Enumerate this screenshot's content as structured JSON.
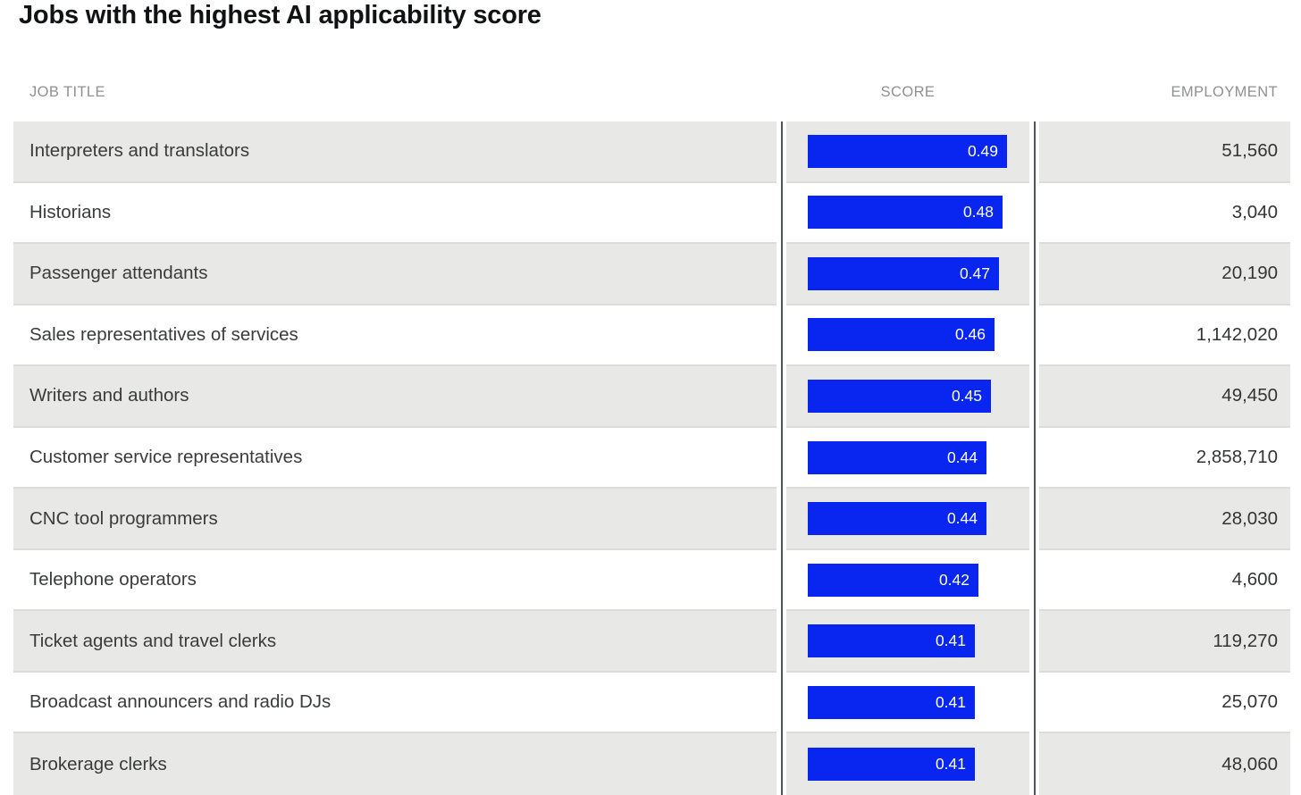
{
  "title": "Jobs with the highest AI applicability score",
  "columns": {
    "job_title": "JOB TITLE",
    "score": "SCORE",
    "employment": "EMPLOYMENT"
  },
  "colors": {
    "bar_blue": "#0826f0",
    "alt_row_bg": "#e8e8e6",
    "column_rule": "#4d5556",
    "header_text": "#8f9092"
  },
  "chart_data": {
    "type": "bar",
    "title": "Jobs with the highest AI applicability score",
    "orientation": "horizontal",
    "categories": [
      "Interpreters and translators",
      "Historians",
      "Passenger attendants",
      "Sales representatives of services",
      "Writers and authors",
      "Customer service representatives",
      "CNC tool programmers",
      "Telephone operators",
      "Ticket agents and travel clerks",
      "Broadcast announcers and radio DJs",
      "Brokerage clerks"
    ],
    "series": [
      {
        "name": "SCORE",
        "values": [
          0.49,
          0.48,
          0.47,
          0.46,
          0.45,
          0.44,
          0.44,
          0.42,
          0.41,
          0.41,
          0.41
        ]
      },
      {
        "name": "EMPLOYMENT",
        "values": [
          51560,
          3040,
          20190,
          1142020,
          49450,
          2858710,
          28030,
          4600,
          119270,
          25070,
          48060
        ]
      }
    ],
    "xlim": [
      0,
      0.52
    ],
    "grid": false,
    "legend": false,
    "data_labels": "inside-bar-end"
  },
  "table": {
    "rows": [
      {
        "job_title": "Interpreters and translators",
        "score": 0.49,
        "score_label": "0.49",
        "employment": "51,560"
      },
      {
        "job_title": "Historians",
        "score": 0.48,
        "score_label": "0.48",
        "employment": "3,040"
      },
      {
        "job_title": "Passenger attendants",
        "score": 0.47,
        "score_label": "0.47",
        "employment": "20,190"
      },
      {
        "job_title": "Sales representatives of services",
        "score": 0.46,
        "score_label": "0.46",
        "employment": "1,142,020"
      },
      {
        "job_title": "Writers and authors",
        "score": 0.45,
        "score_label": "0.45",
        "employment": "49,450"
      },
      {
        "job_title": "Customer service representatives",
        "score": 0.44,
        "score_label": "0.44",
        "employment": "2,858,710"
      },
      {
        "job_title": "CNC tool programmers",
        "score": 0.44,
        "score_label": "0.44",
        "employment": "28,030"
      },
      {
        "job_title": "Telephone operators",
        "score": 0.42,
        "score_label": "0.42",
        "employment": "4,600"
      },
      {
        "job_title": "Ticket agents and travel clerks",
        "score": 0.41,
        "score_label": "0.41",
        "employment": "119,270"
      },
      {
        "job_title": "Broadcast announcers and radio DJs",
        "score": 0.41,
        "score_label": "0.41",
        "employment": "25,070"
      },
      {
        "job_title": "Brokerage clerks",
        "score": 0.41,
        "score_label": "0.41",
        "employment": "48,060"
      }
    ]
  }
}
